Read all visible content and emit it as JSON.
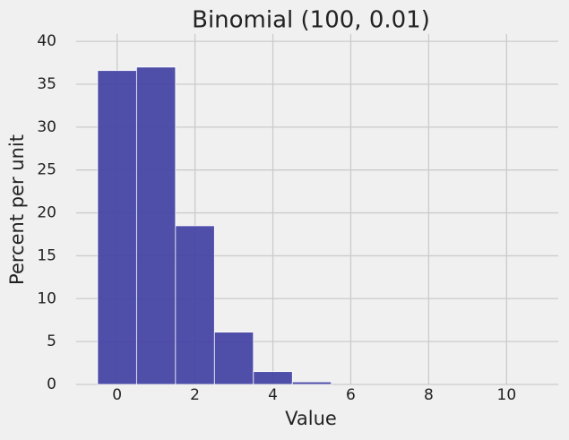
{
  "chart_data": {
    "type": "histogram",
    "title": "Binomial (100, 0.01)",
    "x_label": "Value",
    "y_label": "Percent per unit",
    "bins": [
      -0.5,
      0.5,
      1.5,
      2.5,
      3.5,
      4.5,
      5.5,
      6.5,
      7.5,
      8.5,
      9.5,
      10.5
    ],
    "values": [
      36.6,
      37.0,
      18.5,
      6.1,
      1.5,
      0.3,
      0.0,
      0.0,
      0.0,
      0.0,
      0.0
    ],
    "color": "#4645a4",
    "xlim": [
      -1.05,
      11.05
    ],
    "ylim": [
      0,
      40.85
    ],
    "xticks": [
      0,
      2,
      4,
      6,
      8,
      10
    ],
    "yticks": [
      0,
      5,
      10,
      15,
      20,
      25,
      30,
      35,
      40
    ],
    "grid": true
  }
}
